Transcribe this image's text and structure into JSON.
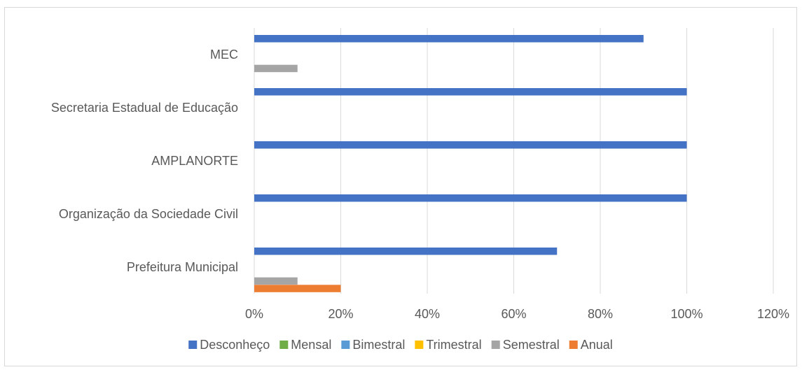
{
  "chart_data": {
    "type": "bar",
    "orientation": "horizontal",
    "title": "",
    "xlabel": "",
    "ylabel": "",
    "categories": [
      "MEC",
      "Secretaria Estadual de Educação",
      "AMPLANORTE",
      "Organização da Sociedade Civil",
      "Prefeitura Municipal"
    ],
    "series": [
      {
        "name": "Desconheço",
        "color": "#4472C4",
        "values": [
          90,
          100,
          100,
          100,
          70
        ]
      },
      {
        "name": "Mensal",
        "color": "#70AD47",
        "values": [
          0,
          0,
          0,
          0,
          0
        ]
      },
      {
        "name": "Bimestral",
        "color": "#5B9BD5",
        "values": [
          0,
          0,
          0,
          0,
          0
        ]
      },
      {
        "name": "Trimestral",
        "color": "#FFC000",
        "values": [
          0,
          0,
          0,
          0,
          0
        ]
      },
      {
        "name": "Semestral",
        "color": "#A5A5A5",
        "values": [
          10,
          0,
          0,
          0,
          10
        ]
      },
      {
        "name": "Anual",
        "color": "#ED7D31",
        "values": [
          0,
          0,
          0,
          0,
          20
        ]
      }
    ],
    "xlim": [
      0,
      120
    ],
    "ticks": [
      "0%",
      "20%",
      "40%",
      "60%",
      "80%",
      "100%",
      "120%"
    ],
    "tick_values": [
      0,
      20,
      40,
      60,
      80,
      100,
      120
    ],
    "gridlines": true,
    "legend_position": "bottom"
  }
}
